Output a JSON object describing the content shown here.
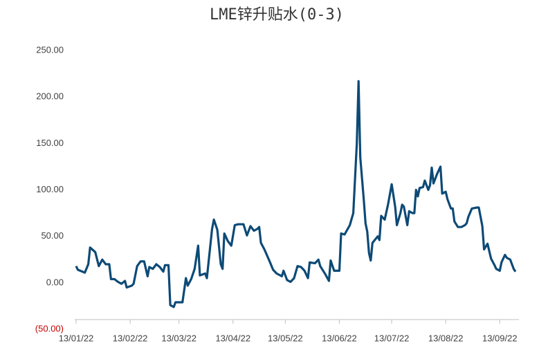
{
  "chart_data": {
    "type": "line",
    "title": "LME锌升贴水(0-3)",
    "x": [
      "2022-01-13",
      "2022-01-14",
      "2022-01-18",
      "2022-01-20",
      "2022-01-21",
      "2022-01-24",
      "2022-01-26",
      "2022-01-28",
      "2022-01-30",
      "2022-02-01",
      "2022-02-02",
      "2022-02-04",
      "2022-02-06",
      "2022-02-08",
      "2022-02-10",
      "2022-02-11",
      "2022-02-14",
      "2022-02-15",
      "2022-02-17",
      "2022-02-19",
      "2022-02-21",
      "2022-02-23",
      "2022-02-24",
      "2022-02-26",
      "2022-02-28",
      "2022-03-02",
      "2022-03-04",
      "2022-03-05",
      "2022-03-07",
      "2022-03-08",
      "2022-03-10",
      "2022-03-11",
      "2022-03-15",
      "2022-03-17",
      "2022-03-18",
      "2022-03-20",
      "2022-03-22",
      "2022-03-24",
      "2022-03-25",
      "2022-03-28",
      "2022-03-29",
      "2022-04-01",
      "2022-04-02",
      "2022-04-04",
      "2022-04-06",
      "2022-04-07",
      "2022-04-08",
      "2022-04-10",
      "2022-04-12",
      "2022-04-14",
      "2022-04-16",
      "2022-04-19",
      "2022-04-21",
      "2022-04-23",
      "2022-04-25",
      "2022-04-27",
      "2022-04-28",
      "2022-04-29",
      "2022-05-01",
      "2022-05-04",
      "2022-05-06",
      "2022-05-08",
      "2022-05-11",
      "2022-05-12",
      "2022-05-14",
      "2022-05-16",
      "2022-05-18",
      "2022-05-20",
      "2022-05-22",
      "2022-05-24",
      "2022-05-26",
      "2022-05-27",
      "2022-05-30",
      "2022-06-01",
      "2022-06-02",
      "2022-06-05",
      "2022-06-07",
      "2022-06-08",
      "2022-06-10",
      "2022-06-13",
      "2022-06-14",
      "2022-06-16",
      "2022-06-19",
      "2022-06-21",
      "2022-06-23",
      "2022-06-24",
      "2022-06-25",
      "2022-06-27",
      "2022-06-28",
      "2022-06-29",
      "2022-06-30",
      "2022-07-01",
      "2022-07-02",
      "2022-07-05",
      "2022-07-06",
      "2022-07-07",
      "2022-07-09",
      "2022-07-11",
      "2022-07-13",
      "2022-07-15",
      "2022-07-16",
      "2022-07-18",
      "2022-07-19",
      "2022-07-20",
      "2022-07-22",
      "2022-07-23",
      "2022-07-25",
      "2022-07-26",
      "2022-07-27",
      "2022-07-28",
      "2022-07-29",
      "2022-07-31",
      "2022-08-01",
      "2022-08-03",
      "2022-08-04",
      "2022-08-05",
      "2022-08-06",
      "2022-08-08",
      "2022-08-10",
      "2022-08-11",
      "2022-08-13",
      "2022-08-14",
      "2022-08-16",
      "2022-08-17",
      "2022-08-18",
      "2022-08-20",
      "2022-08-22",
      "2022-08-24",
      "2022-08-25",
      "2022-08-26",
      "2022-08-28",
      "2022-08-31",
      "2022-09-01",
      "2022-09-03",
      "2022-09-04",
      "2022-09-06",
      "2022-09-08",
      "2022-09-10",
      "2022-09-11",
      "2022-09-13",
      "2022-09-14",
      "2022-09-16",
      "2022-09-17",
      "2022-09-19",
      "2022-09-21",
      "2022-09-22"
    ],
    "series": [
      {
        "name": "LME锌升贴水(0-3)",
        "color": "#0d4a76",
        "values": [
          18,
          14,
          11,
          20,
          38,
          33,
          18,
          25,
          20,
          20,
          4,
          4,
          1,
          -1,
          2,
          -5,
          -3,
          -1,
          18,
          23,
          23,
          7,
          17,
          15,
          20,
          17,
          12,
          19,
          19,
          -24,
          -26,
          -21,
          -21,
          5,
          -3,
          4,
          15,
          40,
          8,
          10,
          5,
          58,
          68,
          57,
          20,
          15,
          53,
          45,
          40,
          62,
          63,
          63,
          51,
          61,
          56,
          58,
          60,
          43,
          36,
          23,
          14,
          10,
          7,
          13,
          3,
          1,
          5,
          18,
          17,
          13,
          5,
          22,
          21,
          25,
          18,
          9,
          2,
          24,
          13,
          13,
          53,
          52,
          62,
          75,
          150,
          217,
          135,
          90,
          64,
          55,
          32,
          24,
          43,
          50,
          46,
          72,
          68,
          85,
          106,
          82,
          62,
          75,
          84,
          82,
          62,
          77,
          75,
          75,
          100,
          93,
          102,
          103,
          110,
          100,
          105,
          124,
          107,
          117,
          125,
          96,
          98,
          90,
          80,
          80,
          66,
          60,
          60,
          62,
          64,
          71,
          80,
          81,
          81,
          61,
          36,
          42,
          26,
          19,
          15,
          13,
          22,
          30,
          27,
          25,
          15,
          12
        ]
      }
    ],
    "xlim": [
      "2022-01-13",
      "2022-09-24"
    ],
    "xticks": [
      {
        "value": "2022-01-13",
        "label": "13/01/22"
      },
      {
        "value": "2022-02-13",
        "label": "13/02/22"
      },
      {
        "value": "2022-03-13",
        "label": "13/03/22"
      },
      {
        "value": "2022-04-13",
        "label": "13/04/22"
      },
      {
        "value": "2022-05-13",
        "label": "13/05/22"
      },
      {
        "value": "2022-06-13",
        "label": "13/06/22"
      },
      {
        "value": "2022-07-13",
        "label": "13/07/22"
      },
      {
        "value": "2022-08-13",
        "label": "13/08/22"
      },
      {
        "value": "2022-09-13",
        "label": "13/09/22"
      }
    ],
    "ylim": [
      -50,
      250
    ],
    "yticks": [
      {
        "value": -50,
        "label": "(50.00)"
      },
      {
        "value": 0,
        "label": "0.00"
      },
      {
        "value": 50,
        "label": "50.00"
      },
      {
        "value": 100,
        "label": "100.00"
      },
      {
        "value": 150,
        "label": "150.00"
      },
      {
        "value": 200,
        "label": "200.00"
      },
      {
        "value": 250,
        "label": "250.00"
      }
    ],
    "negative_label_color": "#c00000",
    "grid": false
  }
}
